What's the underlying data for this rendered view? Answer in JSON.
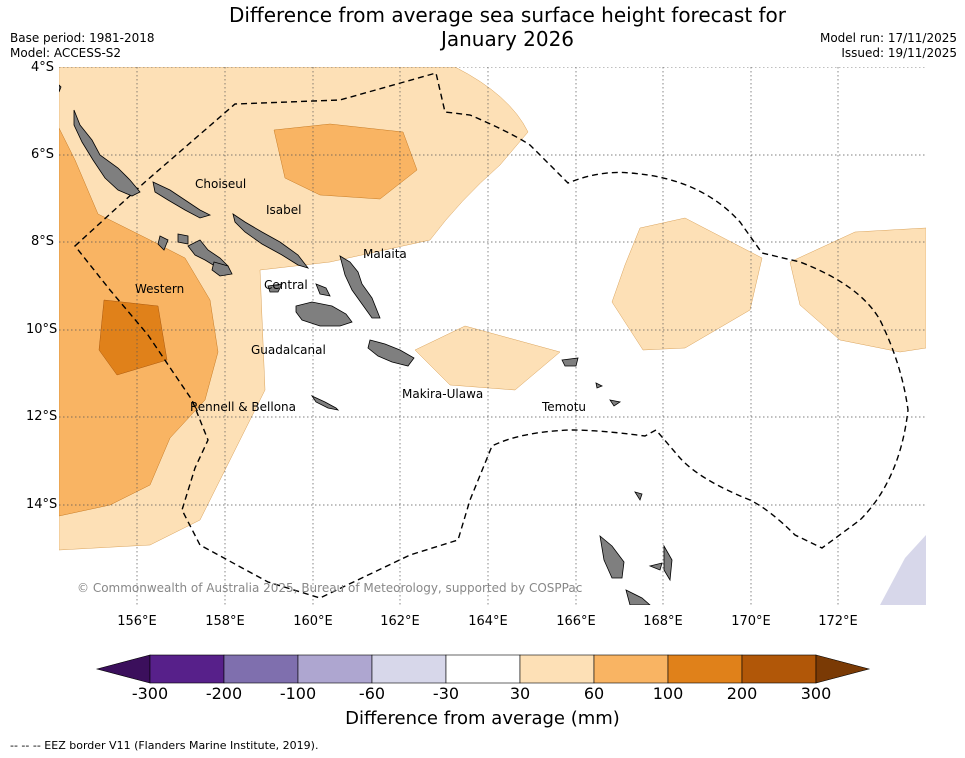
{
  "title": {
    "line1": "Difference from average sea surface height forecast for",
    "line2": "January 2026"
  },
  "meta": {
    "base_period": "Base period: 1981-2018",
    "model": "Model: ACCESS-S2",
    "model_run": "Model run: 17/11/2025",
    "issued": "Issued: 19/11/2025"
  },
  "map": {
    "lat_ticks": [
      "4°S",
      "6°S",
      "8°S",
      "10°S",
      "12°S",
      "14°S"
    ],
    "lon_ticks": [
      "156°E",
      "158°E",
      "160°E",
      "162°E",
      "164°E",
      "166°E",
      "168°E",
      "170°E",
      "172°E"
    ],
    "provinces": {
      "choiseul": "Choiseul",
      "isabel": "Isabel",
      "malaita": "Malaita",
      "western": "Western",
      "central": "Central",
      "guadalcanal": "Guadalcanal",
      "makira": "Makira-Ulawa",
      "temotu": "Temotu",
      "rennell": "Rennell & Bellona"
    },
    "copyright": "© Commonwealth of Australia 2025, Bureau of Meteorology, supported by COSPPac"
  },
  "colorbar": {
    "ticks": [
      "-300",
      "-200",
      "-100",
      "-60",
      "-30",
      "30",
      "60",
      "100",
      "200",
      "300"
    ],
    "colors": [
      "#3b0f5c",
      "#57208a",
      "#7f6fae",
      "#aea6d0",
      "#d7d7ea",
      "#ffffff",
      "#fde0b6",
      "#f9b463",
      "#e0811a",
      "#b15708",
      "#7a3a05"
    ],
    "label": "Difference from average (mm)"
  },
  "footer": "--  --  -- EEZ border V11 (Flanders Marine Institute, 2019)."
}
